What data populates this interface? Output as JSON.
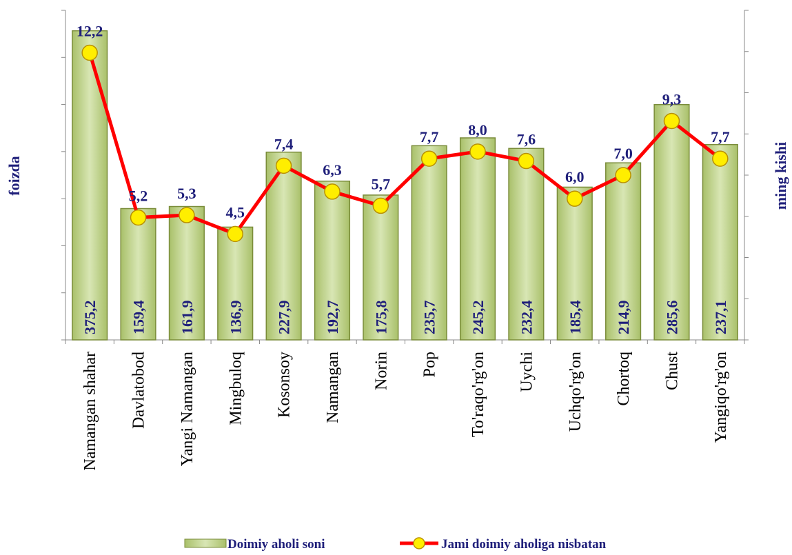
{
  "chart_data": {
    "type": "bar-line",
    "y_label": "foizda",
    "y2_label": "ming kishi",
    "categories": [
      "Namangan shahar",
      "Davlatobod",
      "Yangi Namangan",
      "Mingbuloq",
      "Kosonsoy",
      "Namangan",
      "Norin",
      "Pop",
      "To'raqo'rg'on",
      "Uychi",
      "Uchqo'rg'on",
      "Chortoq",
      "Chust",
      "Yangiqo'rg'on"
    ],
    "series": [
      {
        "name": "Doimiy aholi soni",
        "type": "bar",
        "color": "#c4d79b",
        "values": [
          375.2,
          159.4,
          161.9,
          136.9,
          227.9,
          192.7,
          175.8,
          235.7,
          245.2,
          232.4,
          185.4,
          214.9,
          285.6,
          237.1
        ],
        "value_labels": [
          "375,2",
          "159,4",
          "161,9",
          "136,9",
          "227,9",
          "192,7",
          "175,8",
          "235,7",
          "245,2",
          "232,4",
          "185,4",
          "214,9",
          "285,6",
          "237,1"
        ]
      },
      {
        "name": "Jami doimiy aholiga nisbatan",
        "type": "line",
        "axis": "y2",
        "color": "#ff0000",
        "values": [
          12.2,
          5.2,
          5.3,
          4.5,
          7.4,
          6.3,
          5.7,
          7.7,
          8.0,
          7.6,
          6.0,
          7.0,
          9.3,
          7.7
        ],
        "value_labels": [
          "12,2",
          "5,2",
          "5,3",
          "4,5",
          "7,4",
          "6,3",
          "5,7",
          "7,7",
          "8,0",
          "7,6",
          "6,0",
          "7,0",
          "9,3",
          "7,7"
        ]
      }
    ],
    "ylim": [
      0,
      400
    ],
    "y2lim": [
      0,
      14
    ]
  }
}
